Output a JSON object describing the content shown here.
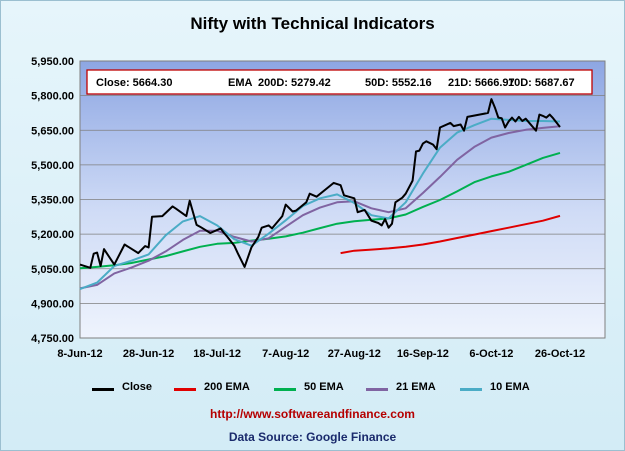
{
  "chart_data": {
    "type": "line",
    "title": "Nifty with Technical Indicators",
    "info": {
      "close": "Close: 5664.30",
      "ema_label": "EMA",
      "d200": "200D: 5279.42",
      "d50": "50D: 5552.16",
      "d21": "21D: 5666.97",
      "d10": "10D: 5687.67"
    },
    "ylim": [
      4750,
      5950
    ],
    "y_ticks": [
      "4,750.00",
      "4,900.00",
      "5,050.00",
      "5,200.00",
      "5,350.00",
      "5,500.00",
      "5,650.00",
      "5,800.00",
      "5,950.00"
    ],
    "y_tick_values": [
      4750,
      4900,
      5050,
      5200,
      5350,
      5500,
      5650,
      5800,
      5950
    ],
    "xlim": [
      0,
      140
    ],
    "x_ticks": [
      "8-Jun-12",
      "28-Jun-12",
      "18-Jul-12",
      "7-Aug-12",
      "27-Aug-12",
      "16-Sep-12",
      "6-Oct-12",
      "26-Oct-12"
    ],
    "x_tick_values": [
      0,
      20,
      40,
      60,
      80,
      100,
      120,
      140
    ],
    "grid": true,
    "legend_position": "bottom",
    "series": [
      {
        "name": "Close",
        "color": "#000000",
        "points": [
          [
            0,
            5068
          ],
          [
            3,
            5054
          ],
          [
            4,
            5115
          ],
          [
            5,
            5120
          ],
          [
            6,
            5062
          ],
          [
            7,
            5135
          ],
          [
            10,
            5068
          ],
          [
            13,
            5155
          ],
          [
            17,
            5118
          ],
          [
            19,
            5148
          ],
          [
            20,
            5142
          ],
          [
            21,
            5275
          ],
          [
            24,
            5278
          ],
          [
            27,
            5320
          ],
          [
            28,
            5310
          ],
          [
            31,
            5278
          ],
          [
            32,
            5345
          ],
          [
            34,
            5240
          ],
          [
            35,
            5232
          ],
          [
            38,
            5205
          ],
          [
            41,
            5225
          ],
          [
            42,
            5205
          ],
          [
            43,
            5188
          ],
          [
            45,
            5150
          ],
          [
            46,
            5118
          ],
          [
            48,
            5058
          ],
          [
            50,
            5142
          ],
          [
            52,
            5188
          ],
          [
            53,
            5228
          ],
          [
            55,
            5238
          ],
          [
            56,
            5225
          ],
          [
            59,
            5278
          ],
          [
            60,
            5328
          ],
          [
            62,
            5298
          ],
          [
            63,
            5302
          ],
          [
            66,
            5338
          ],
          [
            67,
            5375
          ],
          [
            69,
            5362
          ],
          [
            72,
            5398
          ],
          [
            74,
            5422
          ],
          [
            76,
            5412
          ],
          [
            77,
            5368
          ],
          [
            80,
            5355
          ],
          [
            81,
            5295
          ],
          [
            83,
            5305
          ],
          [
            85,
            5258
          ],
          [
            87,
            5248
          ],
          [
            88,
            5238
          ],
          [
            89,
            5265
          ],
          [
            90,
            5228
          ],
          [
            91,
            5245
          ],
          [
            92,
            5338
          ],
          [
            94,
            5358
          ],
          [
            95,
            5375
          ],
          [
            97,
            5432
          ],
          [
            98,
            5558
          ],
          [
            99,
            5562
          ],
          [
            100,
            5592
          ],
          [
            101,
            5602
          ],
          [
            103,
            5588
          ],
          [
            104,
            5568
          ],
          [
            105,
            5662
          ],
          [
            108,
            5682
          ],
          [
            109,
            5668
          ],
          [
            111,
            5675
          ],
          [
            112,
            5648
          ],
          [
            113,
            5708
          ],
          [
            118,
            5722
          ],
          [
            119,
            5725
          ],
          [
            120,
            5785
          ],
          [
            121,
            5748
          ],
          [
            122,
            5705
          ],
          [
            123,
            5702
          ],
          [
            124,
            5662
          ],
          [
            125,
            5688
          ],
          [
            126,
            5705
          ],
          [
            127,
            5688
          ],
          [
            128,
            5708
          ],
          [
            129,
            5690
          ],
          [
            130,
            5700
          ],
          [
            133,
            5648
          ],
          [
            134,
            5718
          ],
          [
            135,
            5712
          ],
          [
            136,
            5705
          ],
          [
            137,
            5718
          ],
          [
            138,
            5702
          ],
          [
            140,
            5664
          ]
        ]
      },
      {
        "name": "200 EMA",
        "color": "#e00000",
        "points": [
          [
            76,
            5118
          ],
          [
            80,
            5128
          ],
          [
            85,
            5133
          ],
          [
            90,
            5138
          ],
          [
            95,
            5145
          ],
          [
            100,
            5155
          ],
          [
            105,
            5168
          ],
          [
            110,
            5183
          ],
          [
            115,
            5198
          ],
          [
            120,
            5213
          ],
          [
            125,
            5228
          ],
          [
            130,
            5243
          ],
          [
            135,
            5258
          ],
          [
            140,
            5279
          ]
        ]
      },
      {
        "name": "50 EMA",
        "color": "#00b050",
        "points": [
          [
            0,
            5052
          ],
          [
            5,
            5058
          ],
          [
            10,
            5065
          ],
          [
            15,
            5075
          ],
          [
            20,
            5090
          ],
          [
            25,
            5105
          ],
          [
            30,
            5125
          ],
          [
            35,
            5145
          ],
          [
            40,
            5158
          ],
          [
            45,
            5162
          ],
          [
            50,
            5172
          ],
          [
            55,
            5180
          ],
          [
            60,
            5190
          ],
          [
            65,
            5206
          ],
          [
            70,
            5226
          ],
          [
            75,
            5245
          ],
          [
            80,
            5256
          ],
          [
            85,
            5262
          ],
          [
            90,
            5268
          ],
          [
            95,
            5285
          ],
          [
            100,
            5318
          ],
          [
            105,
            5348
          ],
          [
            110,
            5385
          ],
          [
            115,
            5425
          ],
          [
            120,
            5450
          ],
          [
            125,
            5470
          ],
          [
            130,
            5500
          ],
          [
            135,
            5530
          ],
          [
            140,
            5552
          ]
        ]
      },
      {
        "name": "21 EMA",
        "color": "#8064a2",
        "points": [
          [
            0,
            4965
          ],
          [
            5,
            4980
          ],
          [
            10,
            5030
          ],
          [
            15,
            5055
          ],
          [
            20,
            5085
          ],
          [
            25,
            5125
          ],
          [
            30,
            5175
          ],
          [
            35,
            5215
          ],
          [
            40,
            5215
          ],
          [
            45,
            5188
          ],
          [
            50,
            5168
          ],
          [
            55,
            5182
          ],
          [
            60,
            5232
          ],
          [
            65,
            5282
          ],
          [
            70,
            5315
          ],
          [
            75,
            5338
          ],
          [
            80,
            5342
          ],
          [
            85,
            5312
          ],
          [
            90,
            5295
          ],
          [
            95,
            5312
          ],
          [
            100,
            5378
          ],
          [
            105,
            5448
          ],
          [
            110,
            5522
          ],
          [
            115,
            5578
          ],
          [
            120,
            5618
          ],
          [
            125,
            5638
          ],
          [
            130,
            5652
          ],
          [
            135,
            5660
          ],
          [
            140,
            5667
          ]
        ]
      },
      {
        "name": "10 EMA",
        "color": "#4bacc6",
        "points": [
          [
            0,
            4962
          ],
          [
            5,
            4990
          ],
          [
            10,
            5062
          ],
          [
            15,
            5085
          ],
          [
            20,
            5112
          ],
          [
            25,
            5195
          ],
          [
            30,
            5255
          ],
          [
            35,
            5278
          ],
          [
            40,
            5238
          ],
          [
            45,
            5178
          ],
          [
            50,
            5150
          ],
          [
            55,
            5202
          ],
          [
            60,
            5260
          ],
          [
            65,
            5322
          ],
          [
            70,
            5355
          ],
          [
            75,
            5372
          ],
          [
            80,
            5335
          ],
          [
            85,
            5282
          ],
          [
            90,
            5268
          ],
          [
            95,
            5338
          ],
          [
            100,
            5462
          ],
          [
            105,
            5575
          ],
          [
            110,
            5640
          ],
          [
            115,
            5672
          ],
          [
            120,
            5700
          ],
          [
            125,
            5695
          ],
          [
            130,
            5690
          ],
          [
            135,
            5690
          ],
          [
            140,
            5688
          ]
        ]
      }
    ]
  },
  "footer": {
    "url": "http://www.softwareandfinance.com",
    "source": "Data Source: Google Finance"
  }
}
